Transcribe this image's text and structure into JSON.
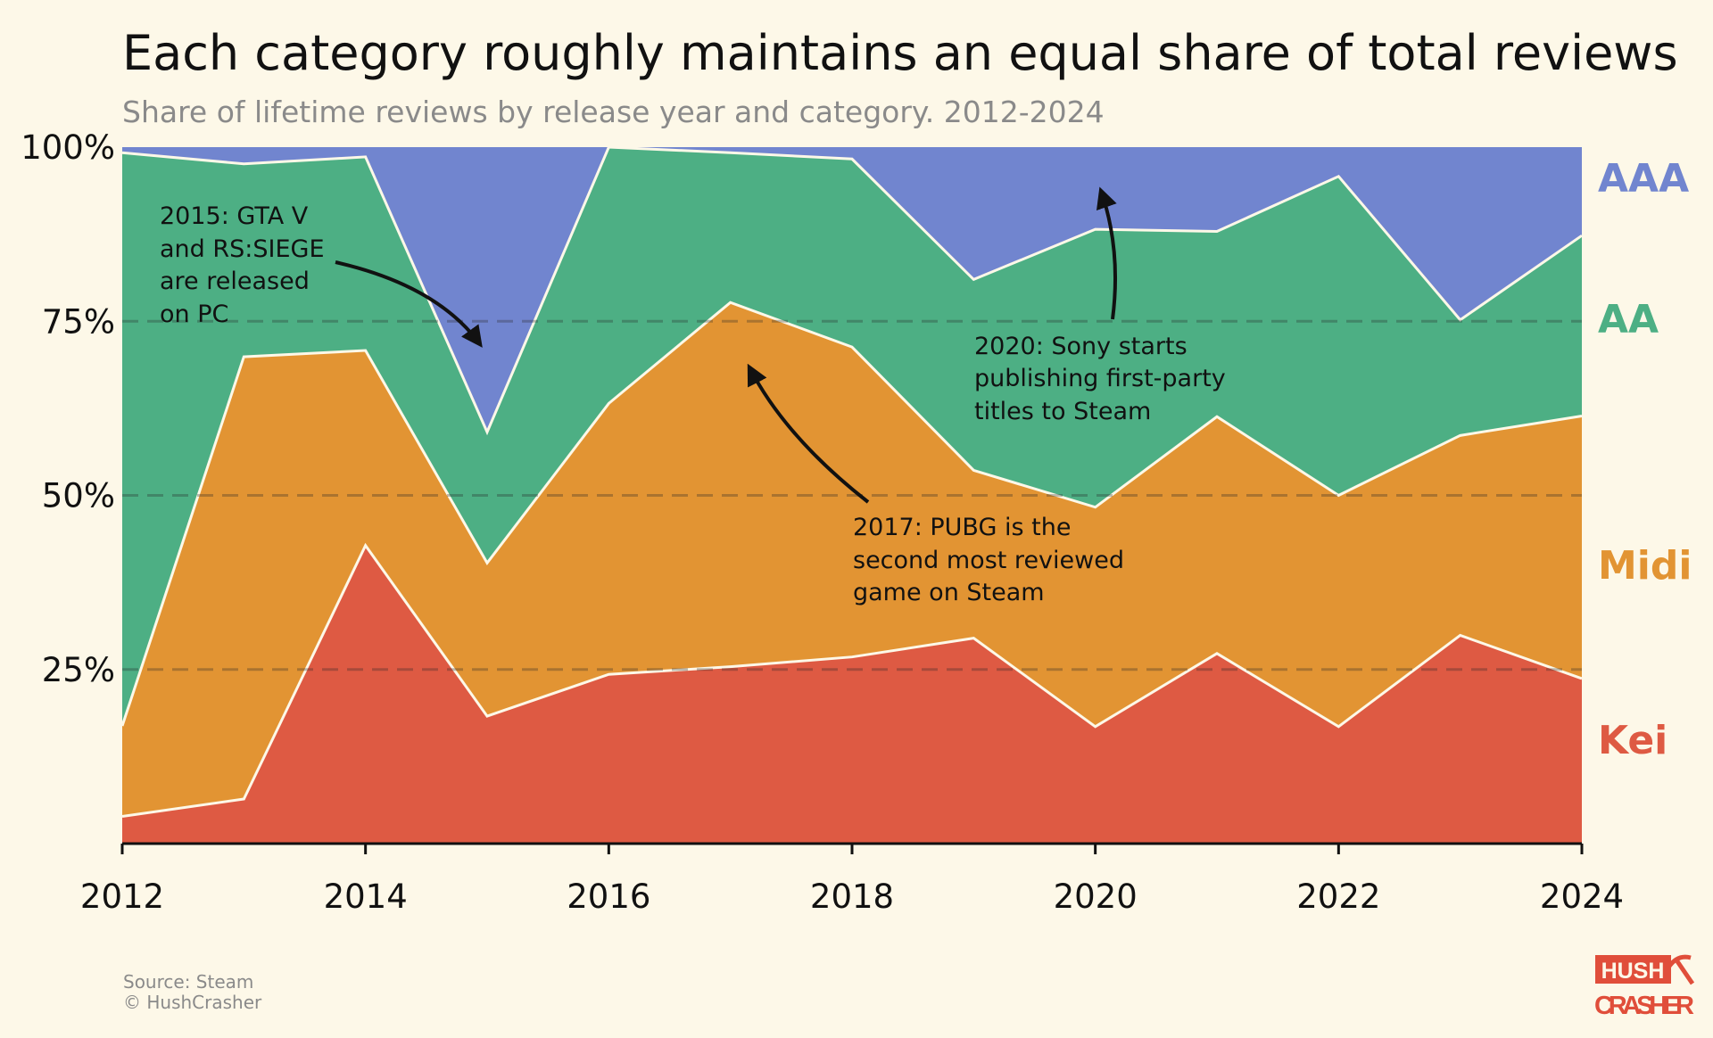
{
  "chart_data": {
    "type": "area",
    "stacked": true,
    "normalized": true,
    "title": "Each category roughly maintains an equal share of total reviews",
    "subtitle": "Share of lifetime reviews by release year and category. 2012-2024",
    "xlabel": "",
    "ylabel": "",
    "x": [
      2012,
      2013,
      2014,
      2015,
      2016,
      2017,
      2018,
      2019,
      2020,
      2021,
      2022,
      2023,
      2024
    ],
    "x_tick_labels": [
      "2012",
      "2014",
      "2016",
      "2018",
      "2020",
      "2022",
      "2024"
    ],
    "y_tick_labels": [
      "100%",
      "75%",
      "50%",
      "25%"
    ],
    "ylim": [
      0,
      100
    ],
    "grid": "dashed horizontal at 25%, 50%, 75%",
    "legend": "direct labels at right",
    "series": [
      {
        "name": "Kei",
        "color": "#de5a43",
        "values": [
          3.9,
          6.4,
          42.8,
          18.3,
          24.3,
          25.4,
          26.8,
          29.5,
          16.8,
          27.3,
          16.8,
          29.9,
          23.7
        ]
      },
      {
        "name": "Midi",
        "color": "#e29433",
        "values": [
          13.0,
          63.5,
          28.0,
          22.0,
          38.9,
          52.3,
          44.5,
          24.1,
          31.5,
          34.0,
          33.2,
          28.7,
          37.7
        ]
      },
      {
        "name": "AA",
        "color": "#4daf84",
        "values": [
          82.3,
          27.7,
          27.8,
          18.8,
          36.8,
          21.5,
          27.0,
          27.4,
          39.9,
          26.6,
          45.8,
          16.6,
          25.9
        ]
      },
      {
        "name": "AAA",
        "color": "#7185cf",
        "values": [
          0.8,
          2.4,
          1.4,
          40.9,
          0.0,
          0.8,
          1.7,
          19.0,
          11.8,
          12.1,
          4.2,
          24.8,
          12.7
        ]
      }
    ],
    "annotations": [
      {
        "lines": [
          "2015: GTA V",
          "and RS:SIEGE",
          "are released",
          "on PC"
        ],
        "points_to": 2015
      },
      {
        "lines": [
          "2017: PUBG is the",
          "second most reviewed",
          "game on Steam"
        ],
        "points_to": 2017
      },
      {
        "lines": [
          "2020: Sony starts",
          "publishing first-party",
          "titles to Steam"
        ],
        "points_to": 2020
      }
    ]
  },
  "footer": {
    "source": "Source: Steam",
    "copyright": "© HushCrasher",
    "logo_text_top": "HUSH",
    "logo_text_bottom": "CRASHER",
    "logo_icon": "pickaxe-icon"
  },
  "colors": {
    "background": "#fdf8e8",
    "logo": "#e04e3a"
  }
}
